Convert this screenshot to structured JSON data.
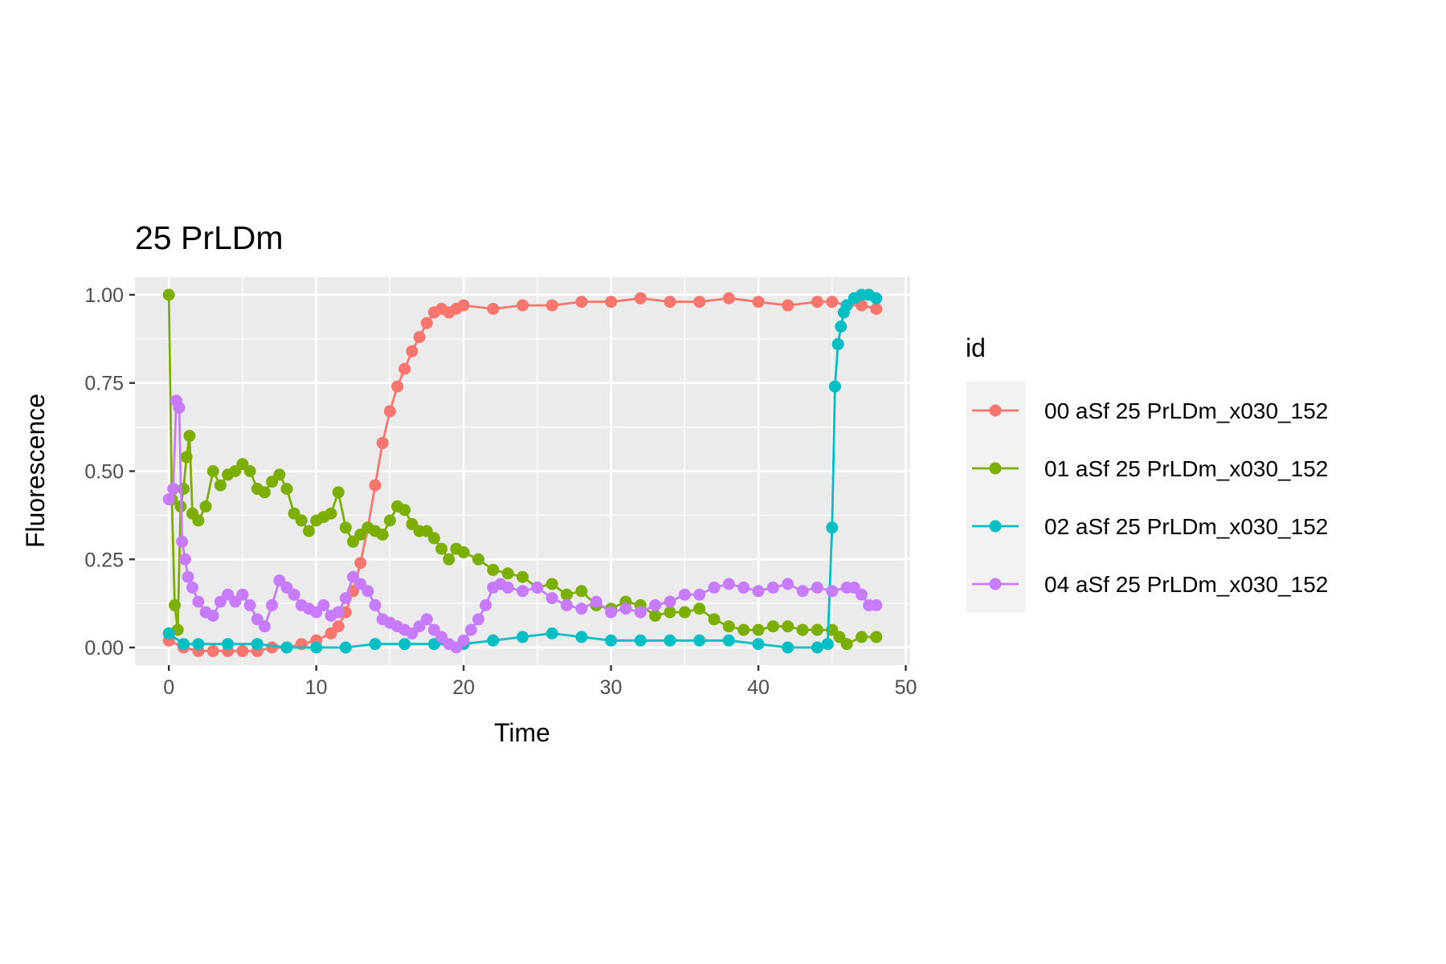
{
  "chart_data": {
    "type": "line",
    "title": "25 PrLDm",
    "xlabel": "Time",
    "ylabel": "Fluorescence",
    "xlim": [
      -2.3,
      50.3
    ],
    "ylim": [
      -0.05,
      1.05
    ],
    "x_ticks": [
      0,
      10,
      20,
      30,
      40,
      50
    ],
    "x_tick_labels": [
      "0",
      "10",
      "20",
      "30",
      "40",
      "50"
    ],
    "y_ticks": [
      0,
      0.25,
      0.5,
      0.75,
      1.0
    ],
    "y_tick_labels": [
      "0.00",
      "0.25",
      "0.50",
      "0.75",
      "1.00"
    ],
    "grid": true,
    "legend_title": "id",
    "legend_position": "right",
    "series": [
      {
        "name": "00 aSf 25 PrLDm_x030_152",
        "color": "#F8766D",
        "points": [
          [
            0,
            0.02
          ],
          [
            1,
            0.0
          ],
          [
            2,
            -0.01
          ],
          [
            3,
            -0.01
          ],
          [
            4,
            -0.01
          ],
          [
            5,
            -0.01
          ],
          [
            6,
            -0.01
          ],
          [
            7,
            0.0
          ],
          [
            8,
            0.0
          ],
          [
            9,
            0.01
          ],
          [
            10,
            0.02
          ],
          [
            11,
            0.04
          ],
          [
            11.5,
            0.06
          ],
          [
            12,
            0.1
          ],
          [
            12.5,
            0.16
          ],
          [
            13,
            0.24
          ],
          [
            13.5,
            0.34
          ],
          [
            14,
            0.46
          ],
          [
            14.5,
            0.58
          ],
          [
            15,
            0.67
          ],
          [
            15.5,
            0.74
          ],
          [
            16,
            0.79
          ],
          [
            16.5,
            0.84
          ],
          [
            17,
            0.88
          ],
          [
            17.5,
            0.92
          ],
          [
            18,
            0.95
          ],
          [
            18.5,
            0.96
          ],
          [
            19,
            0.95
          ],
          [
            19.5,
            0.96
          ],
          [
            20,
            0.97
          ],
          [
            22,
            0.96
          ],
          [
            24,
            0.97
          ],
          [
            26,
            0.97
          ],
          [
            28,
            0.98
          ],
          [
            30,
            0.98
          ],
          [
            32,
            0.99
          ],
          [
            34,
            0.98
          ],
          [
            36,
            0.98
          ],
          [
            38,
            0.99
          ],
          [
            40,
            0.98
          ],
          [
            42,
            0.97
          ],
          [
            44,
            0.98
          ],
          [
            45,
            0.98
          ],
          [
            46,
            0.97
          ],
          [
            47,
            0.97
          ],
          [
            48,
            0.96
          ]
        ]
      },
      {
        "name": "01 aSf 25 PrLDm_x030_152",
        "color": "#7CAE00",
        "points": [
          [
            0,
            1.0
          ],
          [
            0.2,
            0.42
          ],
          [
            0.4,
            0.12
          ],
          [
            0.6,
            0.05
          ],
          [
            0.8,
            0.4
          ],
          [
            1,
            0.45
          ],
          [
            1.2,
            0.54
          ],
          [
            1.4,
            0.6
          ],
          [
            1.6,
            0.38
          ],
          [
            2,
            0.36
          ],
          [
            2.5,
            0.4
          ],
          [
            3,
            0.5
          ],
          [
            3.5,
            0.46
          ],
          [
            4,
            0.49
          ],
          [
            4.5,
            0.5
          ],
          [
            5,
            0.52
          ],
          [
            5.5,
            0.5
          ],
          [
            6,
            0.45
          ],
          [
            6.5,
            0.44
          ],
          [
            7,
            0.47
          ],
          [
            7.5,
            0.49
          ],
          [
            8,
            0.45
          ],
          [
            8.5,
            0.38
          ],
          [
            9,
            0.36
          ],
          [
            9.5,
            0.33
          ],
          [
            10,
            0.36
          ],
          [
            10.5,
            0.37
          ],
          [
            11,
            0.38
          ],
          [
            11.5,
            0.44
          ],
          [
            12,
            0.34
          ],
          [
            12.5,
            0.3
          ],
          [
            13,
            0.32
          ],
          [
            13.5,
            0.34
          ],
          [
            14,
            0.33
          ],
          [
            14.5,
            0.32
          ],
          [
            15,
            0.36
          ],
          [
            15.5,
            0.4
          ],
          [
            16,
            0.39
          ],
          [
            16.5,
            0.35
          ],
          [
            17,
            0.33
          ],
          [
            17.5,
            0.33
          ],
          [
            18,
            0.31
          ],
          [
            18.5,
            0.28
          ],
          [
            19,
            0.25
          ],
          [
            19.5,
            0.28
          ],
          [
            20,
            0.27
          ],
          [
            21,
            0.25
          ],
          [
            22,
            0.22
          ],
          [
            23,
            0.21
          ],
          [
            24,
            0.2
          ],
          [
            25,
            0.17
          ],
          [
            26,
            0.18
          ],
          [
            27,
            0.15
          ],
          [
            28,
            0.16
          ],
          [
            29,
            0.12
          ],
          [
            30,
            0.11
          ],
          [
            31,
            0.13
          ],
          [
            32,
            0.12
          ],
          [
            33,
            0.09
          ],
          [
            34,
            0.1
          ],
          [
            35,
            0.1
          ],
          [
            36,
            0.11
          ],
          [
            37,
            0.08
          ],
          [
            38,
            0.06
          ],
          [
            39,
            0.05
          ],
          [
            40,
            0.05
          ],
          [
            41,
            0.06
          ],
          [
            42,
            0.06
          ],
          [
            43,
            0.05
          ],
          [
            44,
            0.05
          ],
          [
            45,
            0.05
          ],
          [
            45.5,
            0.03
          ],
          [
            46,
            0.01
          ],
          [
            47,
            0.03
          ],
          [
            48,
            0.03
          ]
        ]
      },
      {
        "name": "02 aSf 25 PrLDm_x030_152",
        "color": "#00BFC4",
        "points": [
          [
            0,
            0.04
          ],
          [
            1,
            0.01
          ],
          [
            2,
            0.01
          ],
          [
            4,
            0.01
          ],
          [
            6,
            0.01
          ],
          [
            8,
            0.0
          ],
          [
            10,
            0.0
          ],
          [
            12,
            0.0
          ],
          [
            14,
            0.01
          ],
          [
            16,
            0.01
          ],
          [
            18,
            0.01
          ],
          [
            20,
            0.01
          ],
          [
            22,
            0.02
          ],
          [
            24,
            0.03
          ],
          [
            26,
            0.04
          ],
          [
            28,
            0.03
          ],
          [
            30,
            0.02
          ],
          [
            32,
            0.02
          ],
          [
            34,
            0.02
          ],
          [
            36,
            0.02
          ],
          [
            38,
            0.02
          ],
          [
            40,
            0.01
          ],
          [
            42,
            0.0
          ],
          [
            44,
            0.0
          ],
          [
            44.7,
            0.01
          ],
          [
            45,
            0.34
          ],
          [
            45.2,
            0.74
          ],
          [
            45.4,
            0.86
          ],
          [
            45.6,
            0.91
          ],
          [
            45.8,
            0.95
          ],
          [
            46,
            0.97
          ],
          [
            46.5,
            0.99
          ],
          [
            47,
            1.0
          ],
          [
            47.5,
            1.0
          ],
          [
            48,
            0.99
          ]
        ]
      },
      {
        "name": "04 aSf 25 PrLDm_x030_152",
        "color": "#C77CFF",
        "points": [
          [
            0,
            0.42
          ],
          [
            0.3,
            0.45
          ],
          [
            0.5,
            0.7
          ],
          [
            0.7,
            0.68
          ],
          [
            0.9,
            0.3
          ],
          [
            1.1,
            0.25
          ],
          [
            1.3,
            0.2
          ],
          [
            1.6,
            0.17
          ],
          [
            2,
            0.13
          ],
          [
            2.5,
            0.1
          ],
          [
            3,
            0.09
          ],
          [
            3.5,
            0.13
          ],
          [
            4,
            0.15
          ],
          [
            4.5,
            0.13
          ],
          [
            5,
            0.15
          ],
          [
            5.5,
            0.12
          ],
          [
            6,
            0.08
          ],
          [
            6.5,
            0.06
          ],
          [
            7,
            0.12
          ],
          [
            7.5,
            0.19
          ],
          [
            8,
            0.17
          ],
          [
            8.5,
            0.15
          ],
          [
            9,
            0.12
          ],
          [
            9.5,
            0.11
          ],
          [
            10,
            0.1
          ],
          [
            10.5,
            0.12
          ],
          [
            11,
            0.09
          ],
          [
            11.5,
            0.1
          ],
          [
            12,
            0.14
          ],
          [
            12.5,
            0.2
          ],
          [
            13,
            0.18
          ],
          [
            13.5,
            0.16
          ],
          [
            14,
            0.12
          ],
          [
            14.5,
            0.08
          ],
          [
            15,
            0.07
          ],
          [
            15.5,
            0.06
          ],
          [
            16,
            0.05
          ],
          [
            16.5,
            0.04
          ],
          [
            17,
            0.06
          ],
          [
            17.5,
            0.08
          ],
          [
            18,
            0.05
          ],
          [
            18.5,
            0.03
          ],
          [
            19,
            0.01
          ],
          [
            19.5,
            0.0
          ],
          [
            20,
            0.02
          ],
          [
            20.5,
            0.05
          ],
          [
            21,
            0.08
          ],
          [
            21.5,
            0.12
          ],
          [
            22,
            0.17
          ],
          [
            22.5,
            0.18
          ],
          [
            23,
            0.17
          ],
          [
            24,
            0.16
          ],
          [
            25,
            0.17
          ],
          [
            26,
            0.14
          ],
          [
            27,
            0.12
          ],
          [
            28,
            0.11
          ],
          [
            29,
            0.13
          ],
          [
            30,
            0.1
          ],
          [
            31,
            0.11
          ],
          [
            32,
            0.1
          ],
          [
            33,
            0.12
          ],
          [
            34,
            0.13
          ],
          [
            35,
            0.15
          ],
          [
            36,
            0.15
          ],
          [
            37,
            0.17
          ],
          [
            38,
            0.18
          ],
          [
            39,
            0.17
          ],
          [
            40,
            0.16
          ],
          [
            41,
            0.17
          ],
          [
            42,
            0.18
          ],
          [
            43,
            0.16
          ],
          [
            44,
            0.17
          ],
          [
            45,
            0.16
          ],
          [
            46,
            0.17
          ],
          [
            46.5,
            0.17
          ],
          [
            47,
            0.15
          ],
          [
            47.5,
            0.12
          ],
          [
            48,
            0.12
          ]
        ]
      }
    ]
  }
}
